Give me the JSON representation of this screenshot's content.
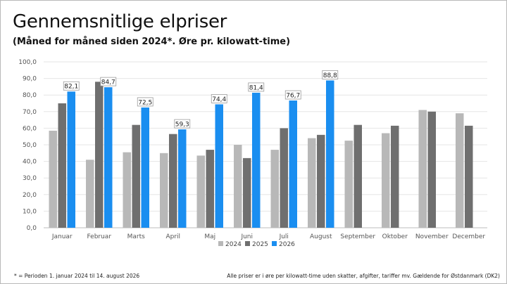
{
  "header": {
    "title": "Gennemsnitlige elpriser",
    "subtitle": "(Måned for måned siden 2024*. Øre pr. kilowatt-time)"
  },
  "footer": {
    "left": "* = Perioden 1. januar 2024 til 14. august 2026",
    "right": "Alle priser er i øre per kilowatt-time uden skatter, afgifter, tariffer mv. Gældende for Østdanmark (DK2)"
  },
  "chart_data": {
    "type": "bar",
    "categories": [
      "Januar",
      "Februar",
      "Marts",
      "April",
      "Maj",
      "Juni",
      "Juli",
      "August",
      "September",
      "Oktober",
      "November",
      "December"
    ],
    "series": [
      {
        "name": "2024",
        "color": "#b8b8b8",
        "values": [
          58.5,
          41.0,
          45.5,
          45.0,
          43.5,
          50.0,
          47.0,
          54.0,
          52.5,
          57.0,
          71.0,
          69.0
        ]
      },
      {
        "name": "2025",
        "color": "#6f6f6f",
        "values": [
          75.0,
          88.0,
          62.0,
          56.5,
          47.0,
          42.0,
          60.0,
          56.0,
          62.0,
          61.5,
          70.0,
          61.5
        ]
      },
      {
        "name": "2026",
        "color": "#1a8ef0",
        "values": [
          82.1,
          84.7,
          72.5,
          59.3,
          74.4,
          81.4,
          76.7,
          88.8,
          null,
          null,
          null,
          null
        ]
      }
    ],
    "data_labels_series": "2026",
    "data_labels": [
      "82,1",
      "84,7",
      "72,5",
      "59,3",
      "74,4",
      "81,4",
      "76,7",
      "88,8"
    ],
    "yticks": [
      "0,0",
      "10,0",
      "20,0",
      "30,0",
      "40,0",
      "50,0",
      "60,0",
      "70,0",
      "80,0",
      "90,0",
      "100,0"
    ],
    "ylim": [
      0,
      100
    ],
    "grid": true,
    "legend_position": "bottom-center",
    "title": "Gennemsnitlige elpriser",
    "xlabel": "",
    "ylabel": ""
  }
}
